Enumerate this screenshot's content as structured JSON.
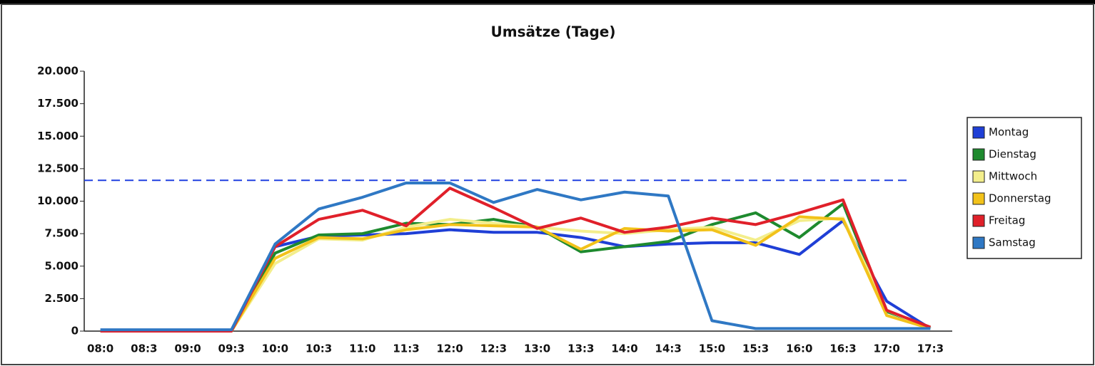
{
  "chart_data": {
    "type": "line",
    "title": "Umsätze (Tage)",
    "categories": [
      "08:0",
      "08:3",
      "09:0",
      "09:3",
      "10:0",
      "10:3",
      "11:0",
      "11:3",
      "12:0",
      "12:3",
      "13:0",
      "13:3",
      "14:0",
      "14:3",
      "15:0",
      "15:3",
      "16:0",
      "16:3",
      "17:0",
      "17:3"
    ],
    "series": [
      {
        "name": "Montag",
        "color": "#1f3fd6",
        "values": [
          0,
          0,
          0,
          0,
          6500,
          7300,
          7400,
          7500,
          7800,
          7600,
          7600,
          7200,
          6500,
          6700,
          6800,
          6800,
          5900,
          8500,
          2300,
          200
        ]
      },
      {
        "name": "Dienstag",
        "color": "#1e8a2e",
        "values": [
          0,
          0,
          0,
          0,
          6000,
          7400,
          7500,
          8300,
          8200,
          8600,
          8000,
          6100,
          6500,
          6900,
          8200,
          9100,
          7200,
          9800,
          1500,
          300
        ]
      },
      {
        "name": "Mittwoch",
        "color": "#f3ee8c",
        "values": [
          0,
          0,
          0,
          0,
          5200,
          7100,
          7000,
          8000,
          8600,
          8300,
          8000,
          7700,
          7500,
          7800,
          8000,
          7000,
          8500,
          8700,
          1600,
          200
        ]
      },
      {
        "name": "Donnerstag",
        "color": "#f2c21a",
        "values": [
          0,
          0,
          0,
          0,
          5600,
          7200,
          7100,
          7800,
          8200,
          8100,
          8000,
          6300,
          7900,
          7700,
          7800,
          6600,
          8800,
          8600,
          1200,
          200
        ]
      },
      {
        "name": "Freitag",
        "color": "#e0202a",
        "values": [
          0,
          0,
          0,
          0,
          6500,
          8600,
          9300,
          8100,
          11000,
          9500,
          7900,
          8700,
          7600,
          8000,
          8700,
          8200,
          9100,
          10100,
          1600,
          300
        ]
      },
      {
        "name": "Samstag",
        "color": "#2f78c4",
        "values": [
          100,
          100,
          100,
          100,
          6700,
          9400,
          10300,
          11400,
          11400,
          9900,
          10900,
          10100,
          10700,
          10400,
          800,
          200,
          200,
          200,
          200,
          200
        ]
      }
    ],
    "reference_line": {
      "value": 11600,
      "color": "#2040e0"
    },
    "ylim": [
      0,
      20000
    ],
    "yticks": [
      {
        "value": 0,
        "label": "0"
      },
      {
        "value": 2500,
        "label": "2.500"
      },
      {
        "value": 5000,
        "label": "5.000"
      },
      {
        "value": 7500,
        "label": "7.500"
      },
      {
        "value": 10000,
        "label": "10.000"
      },
      {
        "value": 12500,
        "label": "12.500"
      },
      {
        "value": 15000,
        "label": "15.000"
      },
      {
        "value": 17500,
        "label": "17.500"
      },
      {
        "value": 20000,
        "label": "20.000"
      }
    ],
    "grid": false,
    "legend": "right"
  }
}
